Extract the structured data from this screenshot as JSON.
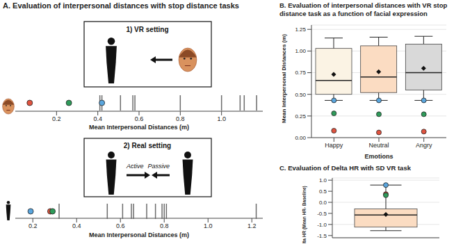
{
  "chart_data": [
    {
      "type": "strip",
      "title": "A. Evaluation of interpersonal distances with stop distance tasks",
      "subtitle": "1) VR setting",
      "x_label": "Mean Interpersonal Distances (m)",
      "x": [
        0.41,
        0.42,
        0.51,
        0.57,
        0.58,
        0.8,
        1.0,
        1.09,
        1.11,
        1.17
      ],
      "points": [
        {
          "color": "#e0533f",
          "value": 0.07
        },
        {
          "color": "#2e9b5a",
          "value": 0.26
        },
        {
          "color": "#5aa6de",
          "value": 0.42
        }
      ],
      "xlim": [
        0,
        1.2
      ],
      "xticks": [
        0.2,
        0.4,
        0.6,
        0.8,
        {
          "value": 1,
          "label": "1.0"
        }
      ]
    },
    {
      "type": "strip",
      "subtitle": "2) Real setting",
      "annotations": [
        "Active",
        "Passive"
      ],
      "x_label": "Mean Interpersonal Distances (m)",
      "x": [
        0.32,
        0.54,
        0.61,
        0.65,
        0.66,
        0.72,
        0.76,
        0.79,
        0.8,
        0.81,
        1.22
      ],
      "points": [
        {
          "color": "#5aa6de",
          "value": 0.19
        },
        {
          "color": "#e0533f",
          "value": 0.28
        },
        {
          "color": "#2e9b5a",
          "value": 0.29
        }
      ],
      "xlim": [
        0.12,
        1.25
      ],
      "xticks": [
        0.2,
        0.4,
        0.6,
        0.8,
        {
          "value": 1,
          "label": "1.0"
        },
        1.2
      ]
    },
    {
      "type": "box",
      "title": "B. Evaluation of interpersonal distances with VR stop distance task as a function of facial expression",
      "categories": [
        "Happy",
        "Neutral",
        "Angry"
      ],
      "x_label": "Emotions",
      "y_label": "Mean Interpersonal Distances (m)",
      "colors": [
        "#fbf3e4",
        "#fbdcc2",
        "#d9d9d9"
      ],
      "boxes": [
        {
          "whisker_low": 0.43,
          "q1": 0.5,
          "median": 0.66,
          "q3": 1.03,
          "whisker_high": 1.15,
          "mean": 0.73
        },
        {
          "whisker_low": 0.43,
          "q1": 0.52,
          "median": 0.7,
          "q3": 1.06,
          "whisker_high": 1.16,
          "mean": 0.76
        },
        {
          "whisker_low": 0.43,
          "q1": 0.55,
          "median": 0.75,
          "q3": 1.08,
          "whisker_high": 1.17,
          "mean": 0.8
        }
      ],
      "points": [
        {
          "color": "#5aa6de",
          "values": [
            0.43,
            0.43,
            0.43
          ]
        },
        {
          "color": "#2e9b5a",
          "values": [
            0.28,
            0.27,
            0.27
          ]
        },
        {
          "color": "#e0533f",
          "values": [
            0.08,
            0.06,
            0.07
          ]
        }
      ],
      "ylim": [
        0,
        1.3
      ],
      "yticks": [
        {
          "value": 0,
          "label": "0.00"
        },
        {
          "value": 0.25,
          "label": "0.25"
        },
        {
          "value": 0.5,
          "label": "0.50"
        },
        {
          "value": 0.75,
          "label": "0.75"
        },
        {
          "value": 1,
          "label": "1.00"
        },
        {
          "value": 1.25,
          "label": "1.25"
        }
      ],
      "grid": true
    },
    {
      "type": "box",
      "title": "C. Evaluation of Delta HR with SD VR task",
      "categories": [
        null
      ],
      "y_label": "Delta HR (Mean HR- Baseline)",
      "colors": [
        "#fbdcc2"
      ],
      "boxes": [
        {
          "whisker_low": -1.28,
          "q1": -1.12,
          "median": -0.57,
          "q3": -0.3,
          "whisker_high": 0.78,
          "mean": -0.55
        }
      ],
      "points": [
        {
          "color": "#5aa6de",
          "values": [
            0.78
          ]
        },
        {
          "color": "#e0533f",
          "values": [
            0.37
          ]
        },
        {
          "color": "#2e9b5a",
          "values": [
            0.32
          ]
        }
      ],
      "ylim": [
        -1.6,
        1.1
      ],
      "yticks": [
        -1.5,
        {
          "value": -1,
          "label": "-1.0"
        },
        -0.5,
        {
          "value": 0,
          "label": "0.0"
        },
        0.5,
        {
          "value": 1,
          "label": "1.0"
        }
      ],
      "grid": true,
      "tick_labels": "y"
    }
  ]
}
